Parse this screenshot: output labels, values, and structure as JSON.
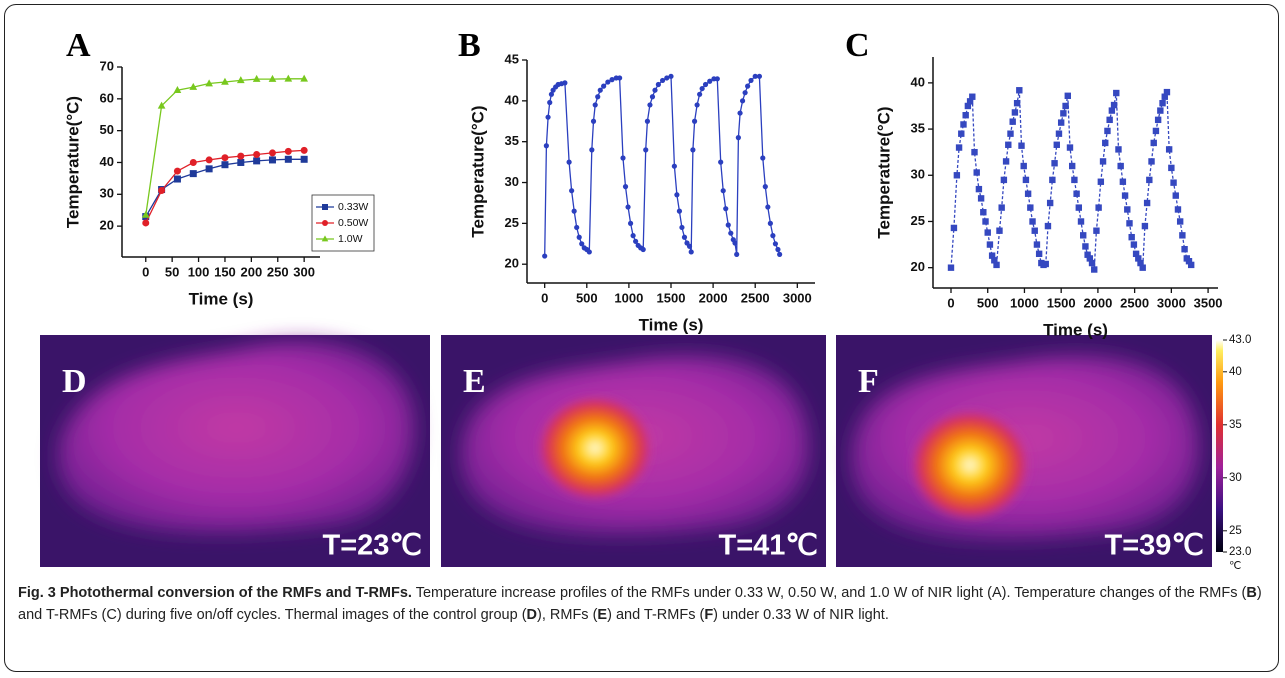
{
  "chart_data": [
    {
      "type": "line",
      "panel_label": "A",
      "xlabel": "Time (s)",
      "ylabel": "Temperature(°C)",
      "x": [
        0,
        30,
        60,
        90,
        120,
        150,
        180,
        210,
        240,
        270,
        300
      ],
      "xlim": [
        -45,
        330
      ],
      "xticks": [
        0,
        50,
        100,
        150,
        200,
        250,
        300
      ],
      "ylim": [
        10.3,
        70
      ],
      "yticks": [
        20,
        30,
        40,
        50,
        60,
        70
      ],
      "legend": "lower right",
      "series": [
        {
          "name": "0.33W",
          "color": "#1f3a9a",
          "marker": "square",
          "values": [
            23,
            31.5,
            34.8,
            36.5,
            38,
            39.3,
            40,
            40.5,
            40.8,
            41,
            41
          ]
        },
        {
          "name": "0.50W",
          "color": "#e02028",
          "marker": "circle",
          "values": [
            21,
            31.2,
            37.3,
            40,
            40.8,
            41.5,
            42,
            42.5,
            43,
            43.5,
            43.8
          ]
        },
        {
          "name": "1.0W",
          "color": "#78c81e",
          "marker": "triangle",
          "values": [
            23.5,
            57.8,
            62.7,
            63.7,
            64.8,
            65.3,
            65.8,
            66.2,
            66.2,
            66.3,
            66.3
          ]
        }
      ]
    },
    {
      "type": "line",
      "panel_label": "B",
      "xlabel": "Time (s)",
      "ylabel": "Temperature(°C)",
      "color": "#2b3fbf",
      "marker": "circle",
      "linestyle": "solid",
      "xlim": [
        -210,
        3210
      ],
      "xticks": [
        0,
        500,
        1000,
        1500,
        2000,
        2500,
        3000
      ],
      "ylim": [
        17.7,
        45
      ],
      "yticks": [
        20,
        25,
        30,
        35,
        40,
        45
      ],
      "x": [
        0,
        20,
        40,
        60,
        80,
        100,
        130,
        160,
        200,
        240,
        290,
        320,
        350,
        380,
        410,
        440,
        470,
        500,
        530,
        560,
        580,
        600,
        630,
        660,
        700,
        750,
        800,
        850,
        890,
        930,
        960,
        990,
        1020,
        1050,
        1080,
        1110,
        1140,
        1170,
        1200,
        1220,
        1250,
        1280,
        1310,
        1350,
        1400,
        1450,
        1500,
        1540,
        1570,
        1600,
        1630,
        1660,
        1690,
        1720,
        1740,
        1760,
        1780,
        1810,
        1840,
        1870,
        1910,
        1960,
        2010,
        2050,
        2090,
        2120,
        2150,
        2180,
        2210,
        2240,
        2260,
        2280,
        2300,
        2320,
        2350,
        2380,
        2410,
        2450,
        2500,
        2550,
        2590,
        2620,
        2650,
        2680,
        2710,
        2740,
        2770,
        2790
      ],
      "values": [
        21,
        34.5,
        38,
        39.8,
        40.8,
        41.3,
        41.7,
        42,
        42.1,
        42.2,
        32.5,
        29,
        26.5,
        24.5,
        23.3,
        22.5,
        22,
        21.8,
        21.5,
        34,
        37.5,
        39.5,
        40.5,
        41.3,
        41.8,
        42.3,
        42.6,
        42.8,
        42.8,
        33,
        29.5,
        27,
        25,
        23.5,
        22.8,
        22.3,
        22,
        21.8,
        34,
        37.5,
        39.5,
        40.5,
        41.3,
        42,
        42.5,
        42.8,
        43,
        32,
        28.5,
        26.5,
        24.5,
        23.3,
        22.6,
        22.2,
        21.5,
        34,
        37.5,
        39.5,
        40.8,
        41.5,
        42,
        42.4,
        42.7,
        42.7,
        32.5,
        29,
        26.8,
        24.8,
        23.8,
        23,
        22.6,
        21.2,
        35.5,
        38.5,
        40,
        41,
        41.8,
        42.5,
        43,
        43,
        33,
        29.5,
        27,
        25,
        23.5,
        22.5,
        21.8,
        21.2
      ]
    },
    {
      "type": "line",
      "panel_label": "C",
      "xlabel": "Time (s)",
      "ylabel": "Temperature(°C)",
      "color": "#3548c0",
      "marker": "square",
      "linestyle": "dashed",
      "xlim": [
        -245,
        3635
      ],
      "xticks": [
        0,
        500,
        1000,
        1500,
        2000,
        2500,
        3000,
        3500
      ],
      "ylim": [
        17.8,
        42.8
      ],
      "yticks": [
        20,
        25,
        30,
        35,
        40
      ],
      "x": [
        0,
        40,
        80,
        110,
        140,
        170,
        200,
        230,
        260,
        290,
        320,
        350,
        380,
        410,
        440,
        470,
        500,
        530,
        560,
        590,
        620,
        660,
        690,
        720,
        750,
        780,
        810,
        840,
        870,
        900,
        930,
        960,
        990,
        1020,
        1050,
        1080,
        1110,
        1140,
        1170,
        1200,
        1230,
        1260,
        1290,
        1320,
        1350,
        1380,
        1410,
        1440,
        1470,
        1500,
        1530,
        1560,
        1590,
        1620,
        1650,
        1680,
        1710,
        1740,
        1770,
        1800,
        1830,
        1860,
        1890,
        1920,
        1950,
        1980,
        2010,
        2040,
        2070,
        2100,
        2130,
        2160,
        2190,
        2220,
        2250,
        2280,
        2310,
        2340,
        2370,
        2400,
        2430,
        2460,
        2490,
        2520,
        2550,
        2580,
        2610,
        2640,
        2670,
        2700,
        2730,
        2760,
        2790,
        2820,
        2850,
        2880,
        2910,
        2940,
        2970,
        3000,
        3030,
        3060,
        3090,
        3120,
        3150,
        3180,
        3210,
        3240,
        3270
      ],
      "values": [
        20,
        24.3,
        30,
        33,
        34.5,
        35.5,
        36.5,
        37.5,
        38,
        38.5,
        32.5,
        30.3,
        28.5,
        27.5,
        26,
        25,
        23.8,
        22.5,
        21.3,
        20.8,
        20.3,
        24,
        26.5,
        29.5,
        31.5,
        33.3,
        34.5,
        35.8,
        36.8,
        37.8,
        39.2,
        33.2,
        31,
        29.5,
        28,
        26.5,
        25,
        24,
        22.5,
        21.5,
        20.5,
        20.3,
        20.4,
        24.5,
        27,
        29.5,
        31.3,
        33.3,
        34.5,
        35.7,
        36.7,
        37.5,
        38.6,
        33,
        31,
        29.5,
        28,
        26.5,
        25,
        23.5,
        22.3,
        21.4,
        21,
        20.5,
        19.8,
        24,
        26.5,
        29.3,
        31.5,
        33.5,
        34.8,
        36,
        37,
        37.6,
        38.9,
        32.8,
        31,
        29.3,
        27.8,
        26.3,
        24.8,
        23.3,
        22.5,
        21.5,
        21,
        20.5,
        20,
        24.5,
        27,
        29.5,
        31.5,
        33.5,
        34.8,
        36,
        37,
        37.8,
        38.5,
        39,
        32.8,
        30.8,
        29.2,
        27.8,
        26.3,
        25,
        23.5,
        22,
        21,
        20.7,
        20.3
      ]
    }
  ],
  "images": [
    {
      "label": "D",
      "temperature": "T=23℃"
    },
    {
      "label": "E",
      "temperature": "T=41℃"
    },
    {
      "label": "F",
      "temperature": "T=39℃"
    }
  ],
  "colorbar": {
    "lim": [
      23,
      43
    ],
    "unit": "℃",
    "ticks": [
      {
        "value": 43,
        "label": "43.0"
      },
      40,
      35,
      30,
      25,
      {
        "value": 23,
        "label": "23.0"
      }
    ]
  },
  "caption": [
    {
      "text": "Fig. 3 Photothermal conversion of the RMFs and T-RMFs.",
      "bold": true
    },
    {
      "text": " Temperature increase profiles of the RMFs under 0.33 W, 0.50 W, and 1.0 W of NIR light (A). Temperature changes of the RMFs (",
      "bold": false
    },
    {
      "text": "B",
      "bold": true
    },
    {
      "text": ") and T-RMFs (C) during five on/off cycles. Thermal images of the control group (",
      "bold": false
    },
    {
      "text": "D",
      "bold": true
    },
    {
      "text": "), RMFs (",
      "bold": false
    },
    {
      "text": "E",
      "bold": true
    },
    {
      "text": ") and T-RMFs (",
      "bold": false
    },
    {
      "text": "F",
      "bold": true
    },
    {
      "text": ") under 0.33 W of NIR light.",
      "bold": false
    }
  ]
}
